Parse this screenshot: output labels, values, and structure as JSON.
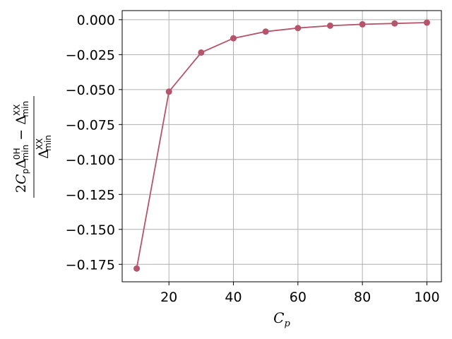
{
  "chart_data": {
    "type": "line",
    "title": "",
    "xlabel": "C_p",
    "ylabel": "(2 C_p Δ_min^0H − Δ_min^XX) / Δ_min^XX",
    "x": [
      10,
      20,
      30,
      40,
      50,
      60,
      70,
      80,
      90,
      100
    ],
    "series": [
      {
        "values": [
          -0.178,
          -0.0515,
          -0.0235,
          -0.0133,
          -0.0085,
          -0.006,
          -0.0043,
          -0.0033,
          -0.0027,
          -0.0021
        ],
        "color": "#b5546a"
      }
    ],
    "xlim": [
      5.5,
      104.5
    ],
    "ylim": [
      -0.1875,
      0.0065
    ],
    "xticks": [
      "20",
      "40",
      "60",
      "80",
      "100"
    ],
    "yticks": [
      "0.000",
      "−0.025",
      "−0.050",
      "−0.075",
      "−0.100",
      "−0.125",
      "−0.150",
      "−0.175"
    ],
    "grid": true,
    "legend": "none"
  }
}
